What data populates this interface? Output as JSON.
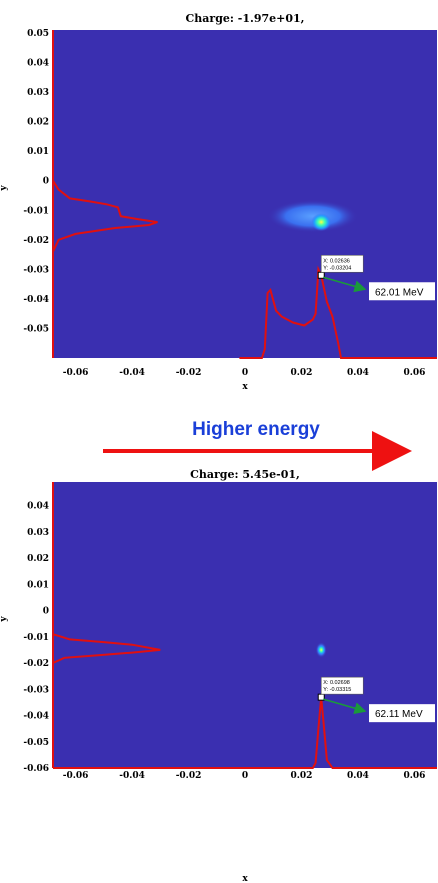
{
  "colors": {
    "background_field": "#3a2fb0",
    "profile_line": "#e01010",
    "arrow_green": "#1a9a3a",
    "banner_text": "#1a3fd8",
    "banner_arrow": "#ee1111"
  },
  "banner": {
    "text": "Higher energy"
  },
  "chart_data": [
    {
      "type": "heatmap",
      "title": "Charge: -1.97e+01,",
      "xlabel": "x",
      "ylabel": "y",
      "xlim": [
        -0.068,
        0.068
      ],
      "ylim": [
        -0.06,
        0.051
      ],
      "x_ticks": [
        "-0.06",
        "-0.04",
        "-0.02",
        "0",
        "0.02",
        "0.04",
        "0.06"
      ],
      "y_ticks": [
        "0.05",
        "0.04",
        "0.03",
        "0.02",
        "0.01",
        "0",
        "-0.01",
        "-0.02",
        "-0.03",
        "-0.04",
        "-0.05"
      ],
      "blob": {
        "center": [
          0.024,
          -0.012
        ],
        "extent": [
          0.032,
          0.011
        ],
        "hotspot": [
          0.027,
          -0.014
        ]
      },
      "x_profile": [
        [
          -0.002,
          -0.06
        ],
        [
          0.006,
          -0.06
        ],
        [
          0.007,
          -0.057
        ],
        [
          0.008,
          -0.038
        ],
        [
          0.009,
          -0.037
        ],
        [
          0.011,
          -0.044
        ],
        [
          0.013,
          -0.046
        ],
        [
          0.017,
          -0.048
        ],
        [
          0.021,
          -0.049
        ],
        [
          0.024,
          -0.047
        ],
        [
          0.025,
          -0.045
        ],
        [
          0.026,
          -0.03
        ],
        [
          0.027,
          -0.032
        ],
        [
          0.029,
          -0.041
        ],
        [
          0.031,
          -0.046
        ],
        [
          0.033,
          -0.055
        ],
        [
          0.034,
          -0.06
        ],
        [
          0.068,
          -0.06
        ]
      ],
      "y_profile": [
        [
          -0.068,
          0.0
        ],
        [
          -0.066,
          -0.003
        ],
        [
          -0.062,
          -0.006
        ],
        [
          -0.055,
          -0.007
        ],
        [
          -0.049,
          -0.008
        ],
        [
          -0.045,
          -0.009
        ],
        [
          -0.044,
          -0.012
        ],
        [
          -0.038,
          -0.013
        ],
        [
          -0.031,
          -0.014
        ],
        [
          -0.034,
          -0.015
        ],
        [
          -0.046,
          -0.016
        ],
        [
          -0.06,
          -0.018
        ],
        [
          -0.066,
          -0.02
        ],
        [
          -0.068,
          -0.024
        ]
      ],
      "datatip": {
        "x": 0.027,
        "y": -0.032,
        "text_x": "X: 0.02636",
        "text_y": "Y: -0.03204"
      },
      "energy_label": "62.01 MeV"
    },
    {
      "type": "heatmap",
      "title": "Charge: 5.45e-01,",
      "xlabel": "x",
      "ylabel": "y",
      "xlim": [
        -0.068,
        0.068
      ],
      "ylim": [
        -0.06,
        0.049
      ],
      "x_ticks": [
        "-0.06",
        "-0.04",
        "-0.02",
        "0",
        "0.02",
        "0.04",
        "0.06"
      ],
      "y_ticks": [
        "0.04",
        "0.03",
        "0.02",
        "0.01",
        "0",
        "-0.01",
        "-0.02",
        "-0.03",
        "-0.04",
        "-0.05",
        "-0.06"
      ],
      "blob": {
        "center": [
          0.027,
          -0.015
        ],
        "extent": [
          0.004,
          0.006
        ],
        "hotspot": [
          0.027,
          -0.015
        ]
      },
      "x_profile": [
        [
          -0.068,
          -0.06
        ],
        [
          0.024,
          -0.06
        ],
        [
          0.025,
          -0.058
        ],
        [
          0.026,
          -0.045
        ],
        [
          0.027,
          -0.033
        ],
        [
          0.028,
          -0.045
        ],
        [
          0.029,
          -0.057
        ],
        [
          0.031,
          -0.06
        ],
        [
          0.068,
          -0.06
        ]
      ],
      "y_profile": [
        [
          -0.068,
          -0.009
        ],
        [
          -0.062,
          -0.011
        ],
        [
          -0.05,
          -0.012
        ],
        [
          -0.04,
          -0.013
        ],
        [
          -0.03,
          -0.015
        ],
        [
          -0.04,
          -0.016
        ],
        [
          -0.052,
          -0.017
        ],
        [
          -0.064,
          -0.018
        ],
        [
          -0.068,
          -0.02
        ]
      ],
      "datatip": {
        "x": 0.027,
        "y": -0.033,
        "text_x": "X: 0.02698",
        "text_y": "Y: -0.03315"
      },
      "energy_label": "62.11 MeV"
    }
  ]
}
